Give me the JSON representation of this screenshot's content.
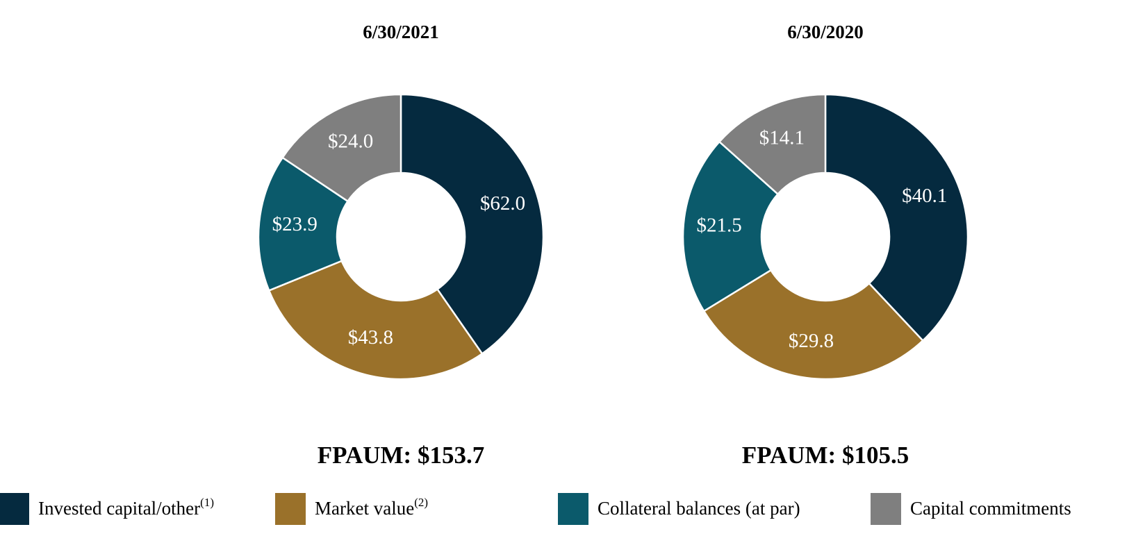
{
  "chart_data": [
    {
      "type": "pie",
      "title": "6/30/2021",
      "values": [
        62.0,
        43.8,
        23.9,
        24.0
      ],
      "value_labels": [
        "$62.0",
        "$43.8",
        "$23.9",
        "$24.0"
      ],
      "total_label": "FPAUM: $153.7",
      "donut": true
    },
    {
      "type": "pie",
      "title": "6/30/2020",
      "values": [
        40.1,
        29.8,
        21.5,
        14.1
      ],
      "value_labels": [
        "$40.1",
        "$29.8",
        "$21.5",
        "$14.1"
      ],
      "total_label": "FPAUM: $105.5",
      "donut": true
    }
  ],
  "legend": {
    "categories": [
      "Invested capital/other",
      "Market value",
      "Collateral balances (at par)",
      "Capital commitments"
    ],
    "notes": [
      "(1)",
      "(2)",
      null,
      null
    ],
    "colors": [
      "#052a3f",
      "#9a712a",
      "#0b5a6b",
      "#7f7f7f"
    ]
  }
}
